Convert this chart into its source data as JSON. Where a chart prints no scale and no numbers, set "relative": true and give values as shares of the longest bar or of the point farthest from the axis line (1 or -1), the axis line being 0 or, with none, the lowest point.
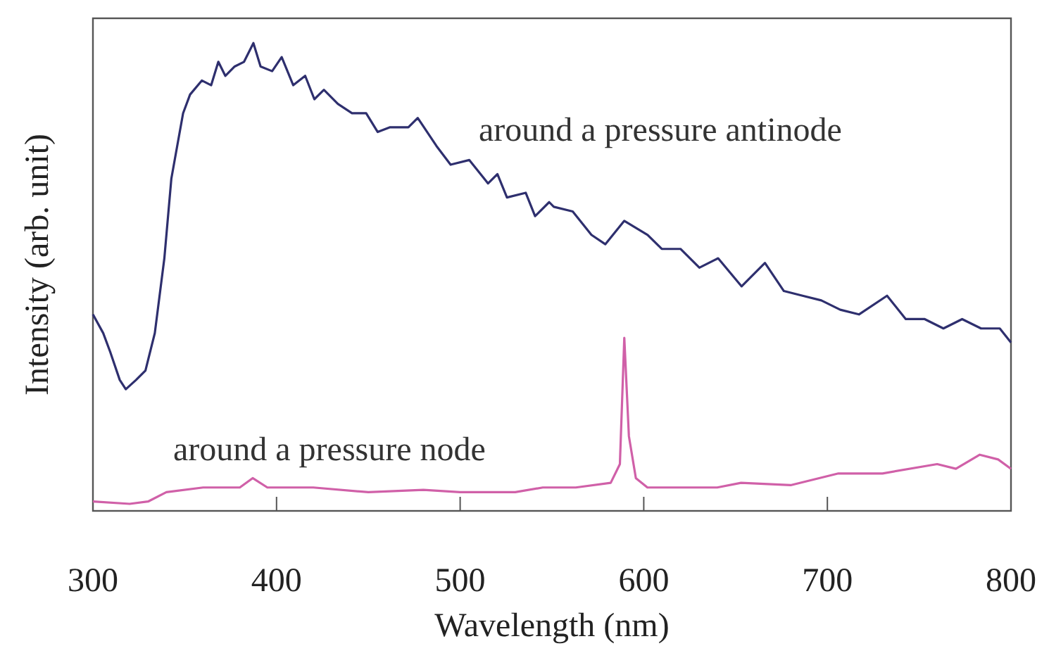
{
  "chart_data": {
    "type": "line",
    "relative": true,
    "xlabel": "Wavelength (nm)",
    "ylabel": "Intensity (arb. unit)",
    "xlim": [
      300,
      800
    ],
    "xticks": [
      300,
      400,
      500,
      600,
      700,
      800
    ],
    "grid": false,
    "marker": "none",
    "line_style": "solid",
    "series": [
      {
        "name": "around a pressure antinode",
        "color": "#2e2f6e",
        "x": [
          300,
          305.6,
          309.4,
          314.6,
          317.9,
          323.5,
          328.6,
          333.7,
          338.9,
          342.7,
          349.1,
          352.9,
          359.3,
          364.4,
          368.3,
          372.1,
          377.2,
          382.3,
          387.4,
          391.3,
          397.6,
          402.8,
          409.1,
          415.6,
          420.6,
          425.8,
          433.4,
          441.1,
          448.8,
          455.1,
          461.6,
          471.8,
          476.9,
          487.1,
          494.8,
          505,
          515.2,
          520.3,
          525.5,
          535.7,
          540.8,
          548.5,
          551,
          561.3,
          571.5,
          579.1,
          589.4,
          602.1,
          609.8,
          620,
          630.3,
          640.5,
          653.3,
          666,
          676.3,
          686.5,
          696.7,
          707,
          717.2,
          732.5,
          742.7,
          753,
          763.2,
          773.4,
          783.7,
          793.9,
          800
        ],
        "values": [
          0.42,
          0.38,
          0.34,
          0.28,
          0.26,
          0.28,
          0.3,
          0.38,
          0.54,
          0.71,
          0.85,
          0.89,
          0.92,
          0.91,
          0.96,
          0.93,
          0.95,
          0.96,
          1,
          0.95,
          0.94,
          0.97,
          0.91,
          0.93,
          0.88,
          0.9,
          0.87,
          0.85,
          0.85,
          0.81,
          0.82,
          0.82,
          0.84,
          0.78,
          0.74,
          0.75,
          0.7,
          0.72,
          0.67,
          0.68,
          0.63,
          0.66,
          0.65,
          0.64,
          0.59,
          0.57,
          0.62,
          0.59,
          0.56,
          0.56,
          0.52,
          0.54,
          0.48,
          0.53,
          0.47,
          0.46,
          0.45,
          0.43,
          0.42,
          0.46,
          0.41,
          0.41,
          0.39,
          0.41,
          0.39,
          0.39,
          0.36
        ]
      },
      {
        "name": "around a pressure node",
        "color": "#d060a8",
        "x": [
          300,
          320,
          330,
          340,
          360,
          380,
          387,
          395,
          420,
          450,
          480,
          500,
          530,
          545,
          548,
          563,
          582,
          587,
          589.4,
          591.9,
          595.7,
          602,
          640,
          653,
          680,
          706,
          730,
          759.8,
          770,
          783,
          793,
          800
        ],
        "values": [
          0.02,
          0.015,
          0.02,
          0.04,
          0.05,
          0.05,
          0.07,
          0.05,
          0.05,
          0.04,
          0.045,
          0.04,
          0.04,
          0.05,
          0.05,
          0.05,
          0.06,
          0.1,
          0.37,
          0.16,
          0.07,
          0.05,
          0.05,
          0.06,
          0.055,
          0.08,
          0.08,
          0.1,
          0.09,
          0.12,
          0.11,
          0.09
        ]
      }
    ]
  }
}
